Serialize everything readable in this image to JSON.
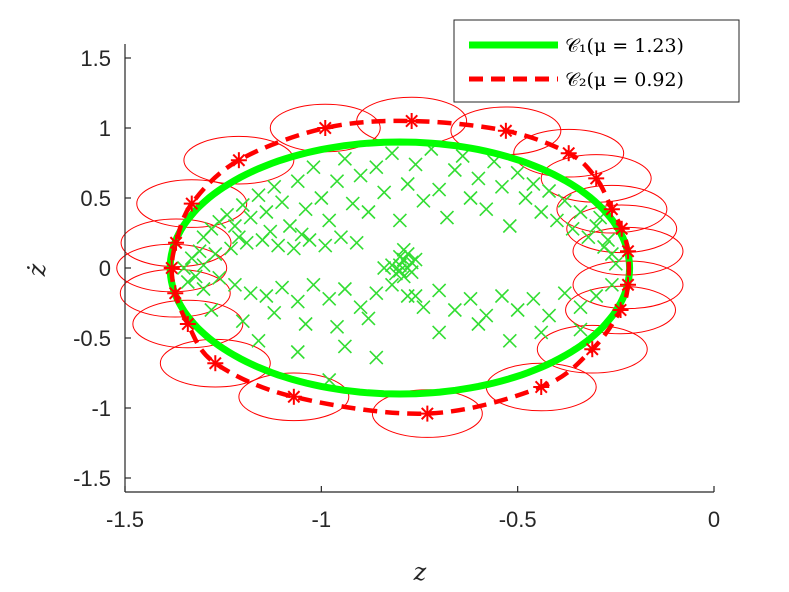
{
  "chart_data": {
    "type": "scatter",
    "xlabel": "z",
    "ylabel": "ż",
    "xlim": [
      -1.5,
      0
    ],
    "ylim": [
      -1.6,
      1.6
    ],
    "x_ticks": [
      -1.5,
      -1,
      -0.5,
      0
    ],
    "x_tick_labels": [
      "-1.5",
      "-1",
      "-0.5",
      "0"
    ],
    "y_ticks": [
      1.5,
      1,
      0.5,
      0,
      -0.5,
      -1,
      -1.5
    ],
    "y_tick_labels": [
      "1.5",
      "1",
      "0.5",
      "0",
      "-0.5",
      "-1",
      "-1.5"
    ],
    "grid": false,
    "legend_position": "top-right",
    "series": [
      {
        "name": "𝒞₁(μ = 1.23)",
        "kind": "ellipse",
        "style": "solid",
        "color": "#00ff00",
        "center": [
          -0.8,
          0
        ],
        "radii": [
          0.585,
          0.9
        ]
      },
      {
        "name": "𝒞₂(μ = 0.92)",
        "kind": "closed-curve",
        "style": "dashed",
        "color": "#ff0000",
        "marker": "asterisk",
        "points": [
          [
            -1.381,
            0.0
          ],
          [
            -1.372,
            -0.18
          ],
          [
            -1.34,
            -0.4
          ],
          [
            -1.27,
            -0.68
          ],
          [
            -1.07,
            -0.92
          ],
          [
            -0.73,
            -1.04
          ],
          [
            -0.44,
            -0.85
          ],
          [
            -0.31,
            -0.58
          ],
          [
            -0.238,
            -0.3
          ],
          [
            -0.219,
            -0.12
          ],
          [
            -0.219,
            0.12
          ],
          [
            -0.235,
            0.28
          ],
          [
            -0.26,
            0.42
          ],
          [
            -0.3,
            0.64
          ],
          [
            -0.37,
            0.82
          ],
          [
            -0.53,
            0.98
          ],
          [
            -0.77,
            1.05
          ],
          [
            -0.99,
            1.0
          ],
          [
            -1.21,
            0.77
          ],
          [
            -1.33,
            0.46
          ],
          [
            -1.37,
            0.18
          ]
        ],
        "circle_radius": [
          0.14,
          0.17
        ]
      },
      {
        "kind": "scatter",
        "color": "#33dd33",
        "marker": "x",
        "points": [
          [
            -1.35,
            0.0
          ],
          [
            -1.33,
            0.07
          ],
          [
            -1.31,
            0.12
          ],
          [
            -1.32,
            -0.06
          ],
          [
            -1.3,
            0.22
          ],
          [
            -1.28,
            0.28
          ],
          [
            -1.26,
            0.33
          ],
          [
            -1.24,
            0.38
          ],
          [
            -1.22,
            0.3
          ],
          [
            -1.2,
            0.45
          ],
          [
            -1.18,
            0.36
          ],
          [
            -1.16,
            0.52
          ],
          [
            -1.14,
            0.4
          ],
          [
            -1.12,
            0.58
          ],
          [
            -1.1,
            0.47
          ],
          [
            -1.08,
            0.3
          ],
          [
            -1.06,
            0.62
          ],
          [
            -1.04,
            0.42
          ],
          [
            -1.02,
            0.72
          ],
          [
            -1.0,
            0.5
          ],
          [
            -0.98,
            0.34
          ],
          [
            -0.96,
            0.62
          ],
          [
            -0.94,
            0.78
          ],
          [
            -0.92,
            0.46
          ],
          [
            -0.9,
            0.66
          ],
          [
            -0.88,
            0.4
          ],
          [
            -0.86,
            0.72
          ],
          [
            -0.84,
            0.54
          ],
          [
            -0.82,
            0.82
          ],
          [
            -0.8,
            0.34
          ],
          [
            -0.78,
            0.6
          ],
          [
            -0.76,
            0.74
          ],
          [
            -0.74,
            0.48
          ],
          [
            -0.72,
            0.85
          ],
          [
            -0.7,
            0.56
          ],
          [
            -0.68,
            0.36
          ],
          [
            -0.66,
            0.7
          ],
          [
            -0.64,
            0.8
          ],
          [
            -0.62,
            0.5
          ],
          [
            -0.6,
            0.64
          ],
          [
            -0.58,
            0.42
          ],
          [
            -0.56,
            0.76
          ],
          [
            -0.54,
            0.58
          ],
          [
            -0.52,
            0.3
          ],
          [
            -0.5,
            0.68
          ],
          [
            -0.48,
            0.5
          ],
          [
            -0.46,
            0.6
          ],
          [
            -0.44,
            0.4
          ],
          [
            -0.42,
            0.55
          ],
          [
            -0.4,
            0.34
          ],
          [
            -0.38,
            0.48
          ],
          [
            -0.36,
            0.28
          ],
          [
            -0.34,
            0.4
          ],
          [
            -0.32,
            0.22
          ],
          [
            -0.3,
            0.3
          ],
          [
            -0.28,
            0.15
          ],
          [
            -0.26,
            0.1
          ],
          [
            -0.25,
            0.03
          ],
          [
            -0.27,
            0.2
          ],
          [
            -0.29,
            0.36
          ],
          [
            -1.3,
            0.02
          ],
          [
            -1.27,
            0.1
          ],
          [
            -1.23,
            0.14
          ],
          [
            -1.19,
            0.18
          ],
          [
            -1.15,
            0.2
          ],
          [
            -1.11,
            0.16
          ],
          [
            -1.07,
            0.14
          ],
          [
            -1.03,
            0.2
          ],
          [
            -0.99,
            0.16
          ],
          [
            -1.05,
            0.24
          ],
          [
            -1.13,
            0.26
          ],
          [
            -1.21,
            0.22
          ],
          [
            -0.95,
            0.22
          ],
          [
            -0.91,
            0.18
          ],
          [
            -1.34,
            -0.1
          ],
          [
            -1.3,
            -0.15
          ],
          [
            -1.26,
            -0.07
          ],
          [
            -1.22,
            -0.12
          ],
          [
            -1.18,
            -0.18
          ],
          [
            -1.14,
            -0.2
          ],
          [
            -1.1,
            -0.14
          ],
          [
            -1.06,
            -0.24
          ],
          [
            -1.02,
            -0.12
          ],
          [
            -0.98,
            -0.22
          ],
          [
            -0.94,
            -0.15
          ],
          [
            -0.9,
            -0.28
          ],
          [
            -0.86,
            -0.18
          ],
          [
            -0.82,
            -0.12
          ],
          [
            -0.78,
            -0.2
          ],
          [
            -0.74,
            -0.28
          ],
          [
            -0.7,
            -0.16
          ],
          [
            -0.66,
            -0.3
          ],
          [
            -0.62,
            -0.22
          ],
          [
            -0.58,
            -0.34
          ],
          [
            -0.54,
            -0.2
          ],
          [
            -0.5,
            -0.3
          ],
          [
            -0.46,
            -0.22
          ],
          [
            -0.42,
            -0.34
          ],
          [
            -0.38,
            -0.18
          ],
          [
            -0.34,
            -0.28
          ],
          [
            -0.3,
            -0.2
          ],
          [
            -0.26,
            -0.12
          ],
          [
            -1.28,
            -0.3
          ],
          [
            -1.2,
            -0.38
          ],
          [
            -1.12,
            -0.32
          ],
          [
            -1.04,
            -0.4
          ],
          [
            -0.96,
            -0.42
          ],
          [
            -0.88,
            -0.36
          ],
          [
            -1.16,
            -0.52
          ],
          [
            -1.06,
            -0.6
          ],
          [
            -0.94,
            -0.56
          ],
          [
            -0.86,
            -0.64
          ],
          [
            -0.7,
            -0.46
          ],
          [
            -0.6,
            -0.4
          ],
          [
            -0.52,
            -0.52
          ],
          [
            -0.44,
            -0.46
          ],
          [
            -0.34,
            -0.44
          ],
          [
            -0.98,
            -0.8
          ],
          [
            -0.76,
            -0.2
          ],
          [
            -0.8,
            0.02
          ],
          [
            -0.79,
            0.06
          ],
          [
            -0.78,
            0.0
          ],
          [
            -0.77,
            0.04
          ],
          [
            -0.81,
            -0.04
          ],
          [
            -0.8,
            -0.02
          ],
          [
            -0.78,
            0.1
          ],
          [
            -0.77,
            -0.03
          ],
          [
            -0.79,
            0.13
          ],
          [
            -0.82,
            0.02
          ],
          [
            -0.76,
            0.06
          ],
          [
            -0.8,
            0.08
          ],
          [
            -0.79,
            -0.06
          ],
          [
            -0.84,
            0.0
          ]
        ]
      }
    ]
  }
}
